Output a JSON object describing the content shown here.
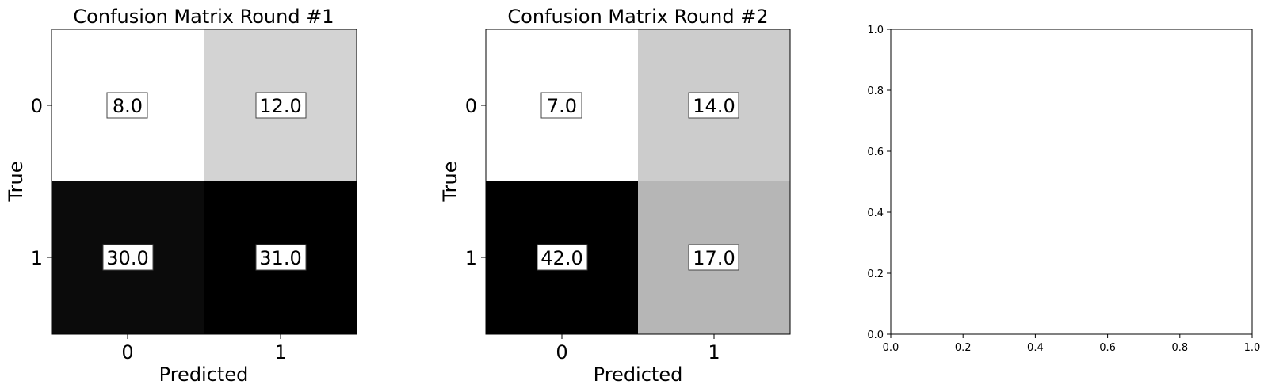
{
  "chart_data": [
    {
      "type": "heatmap",
      "title": "Confusion Matrix Round #1",
      "xlabel": "Predicted",
      "ylabel": "True",
      "x_categories": [
        "0",
        "1"
      ],
      "y_categories": [
        "0",
        "1"
      ],
      "values": [
        [
          8.0,
          12.0
        ],
        [
          30.0,
          31.0
        ]
      ],
      "value_labels": [
        [
          "8.0",
          "12.0"
        ],
        [
          "30.0",
          "31.0"
        ]
      ],
      "colormap": "gray_r"
    },
    {
      "type": "heatmap",
      "title": "Confusion Matrix Round #2",
      "xlabel": "Predicted",
      "ylabel": "True",
      "x_categories": [
        "0",
        "1"
      ],
      "y_categories": [
        "0",
        "1"
      ],
      "values": [
        [
          7.0,
          14.0
        ],
        [
          42.0,
          17.0
        ]
      ],
      "value_labels": [
        [
          "7.0",
          "14.0"
        ],
        [
          "42.0",
          "17.0"
        ]
      ],
      "colormap": "gray_r"
    },
    {
      "type": "empty",
      "title": "",
      "xlim": [
        0.0,
        1.0
      ],
      "ylim": [
        0.0,
        1.0
      ],
      "xticks": [
        "0.0",
        "0.2",
        "0.4",
        "0.6",
        "0.8",
        "1.0"
      ],
      "yticks": [
        "0.0",
        "0.2",
        "0.4",
        "0.6",
        "0.8",
        "1.0"
      ]
    }
  ]
}
